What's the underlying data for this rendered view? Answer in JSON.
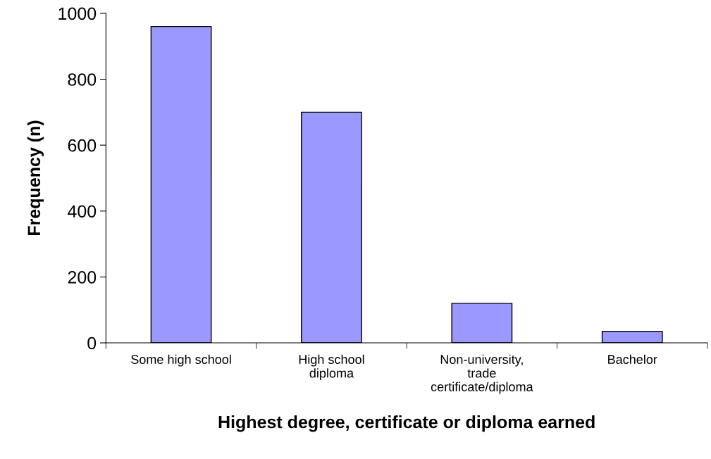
{
  "chart_data": {
    "type": "bar",
    "xlabel": "Highest degree, certificate or diploma earned",
    "ylabel": "Frequency (n)",
    "categories": [
      "Some high school",
      "High school\ndiploma",
      "Non-university,\ntrade\ncertificate/diploma",
      "Bachelor"
    ],
    "values": [
      960,
      700,
      120,
      35
    ],
    "color": "#9999ff",
    "ylim": [
      0,
      1000
    ],
    "yticks": [
      0,
      200,
      400,
      600,
      800,
      1000
    ],
    "grid": false,
    "legend": false
  }
}
